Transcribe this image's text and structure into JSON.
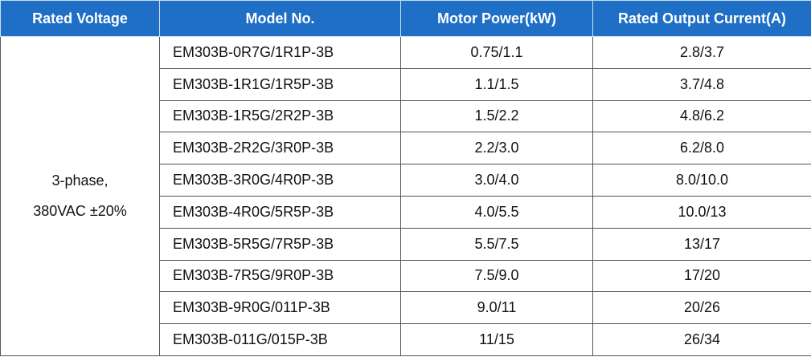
{
  "table": {
    "header": [
      "Rated Voltage",
      "Model No.",
      "Motor Power(kW)",
      "Rated Output Current(A)"
    ],
    "voltage": [
      "3-phase,",
      "380VAC ±20%"
    ],
    "rows": [
      [
        "EM303B-0R7G/1R1P-3B",
        "0.75/1.1",
        "2.8/3.7"
      ],
      [
        "EM303B-1R1G/1R5P-3B",
        "1.1/1.5",
        "3.7/4.8"
      ],
      [
        "EM303B-1R5G/2R2P-3B",
        "1.5/2.2",
        "4.8/6.2"
      ],
      [
        "EM303B-2R2G/3R0P-3B",
        "2.2/3.0",
        "6.2/8.0"
      ],
      [
        "EM303B-3R0G/4R0P-3B",
        "3.0/4.0",
        "8.0/10.0"
      ],
      [
        "EM303B-4R0G/5R5P-3B",
        "4.0/5.5",
        "10.0/13"
      ],
      [
        "EM303B-5R5G/7R5P-3B",
        "5.5/7.5",
        "13/17"
      ],
      [
        "EM303B-7R5G/9R0P-3B",
        "7.5/9.0",
        "17/20"
      ],
      [
        "EM303B-9R0G/011P-3B",
        "9.0/11",
        "20/26"
      ],
      [
        "EM303B-011G/015P-3B",
        "11/15",
        "26/34"
      ]
    ]
  }
}
